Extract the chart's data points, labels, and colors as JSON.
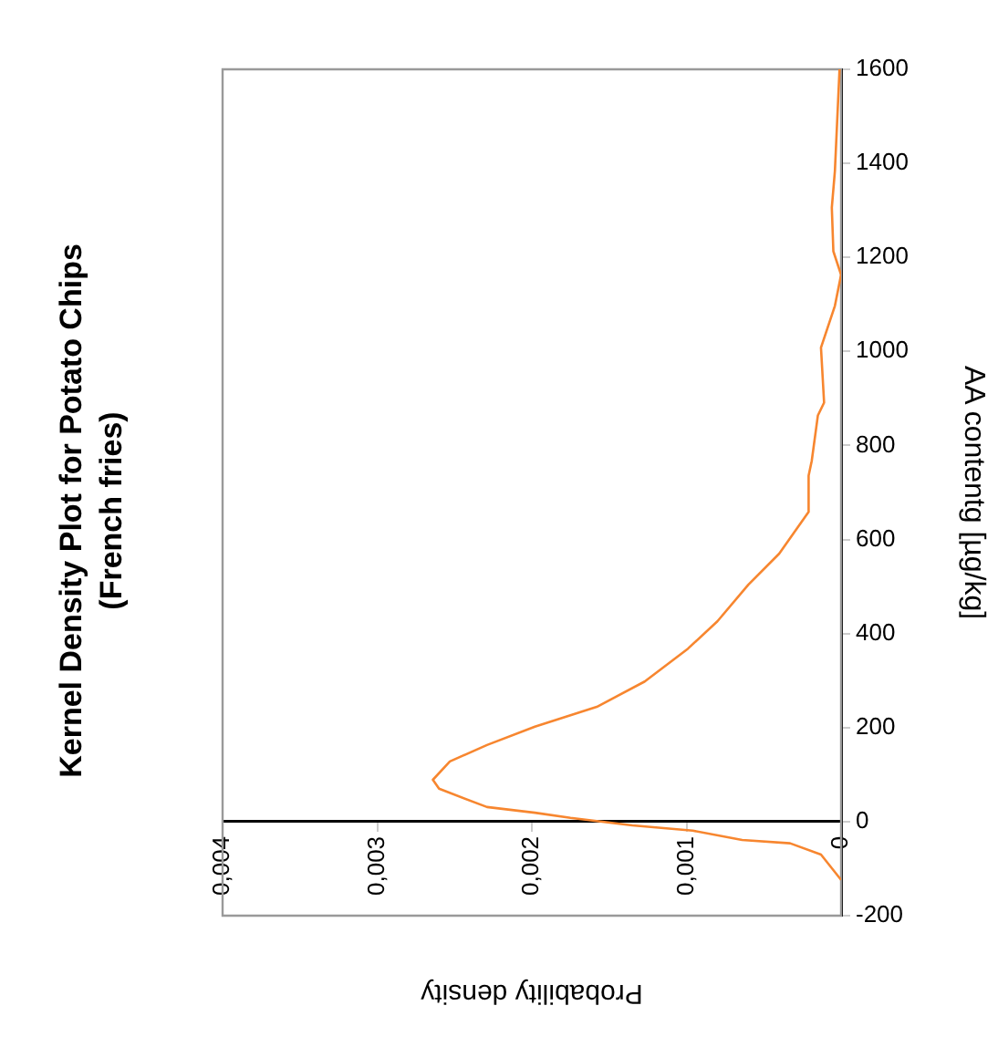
{
  "chart_data": {
    "type": "line",
    "title": "Kernel Density Plot for Potato Chips",
    "subtitle": "(French fries)",
    "xlabel": "Probability density",
    "ylabel": "AA contentg [µg/kg]",
    "series": [
      {
        "color": "#f7862f",
        "x": [
          0,
          0.00013,
          0.00033,
          0.00064,
          0.00096,
          0.00135,
          0.00175,
          0.00198,
          0.00229,
          0.0026,
          0.00264,
          0.00253,
          0.00229,
          0.00198,
          0.00158,
          0.00127,
          0.00099,
          0.0008,
          0.0006,
          0.0004,
          0.00021,
          0.00021,
          0.00019,
          0.00015,
          0.00011,
          0.00013,
          4e-05,
          0,
          5e-05,
          6e-05,
          4e-05,
          1e-05
        ],
        "values": [
          -124,
          -70,
          -46,
          -39,
          -19,
          -8,
          8,
          19,
          31,
          70,
          89,
          128,
          163,
          202,
          244,
          298,
          368,
          426,
          504,
          570,
          659,
          736,
          767,
          864,
          891,
          1008,
          1097,
          1163,
          1213,
          1306,
          1384,
          1600
        ]
      }
    ],
    "xlim": [
      0.004,
      0
    ],
    "xticks": [
      {
        "value": 0.004,
        "label": "0,004"
      },
      {
        "value": 0.003,
        "label": "0,003"
      },
      {
        "value": 0.002,
        "label": "0,002"
      },
      {
        "value": 0.001,
        "label": "0,001"
      },
      0
    ],
    "ylim": [
      -200,
      1600
    ],
    "yticks": [
      -200,
      0,
      200,
      400,
      600,
      800,
      1000,
      1200,
      1400,
      1600
    ],
    "grid": false,
    "legend": false,
    "marker": "none",
    "line_style": "solid"
  }
}
